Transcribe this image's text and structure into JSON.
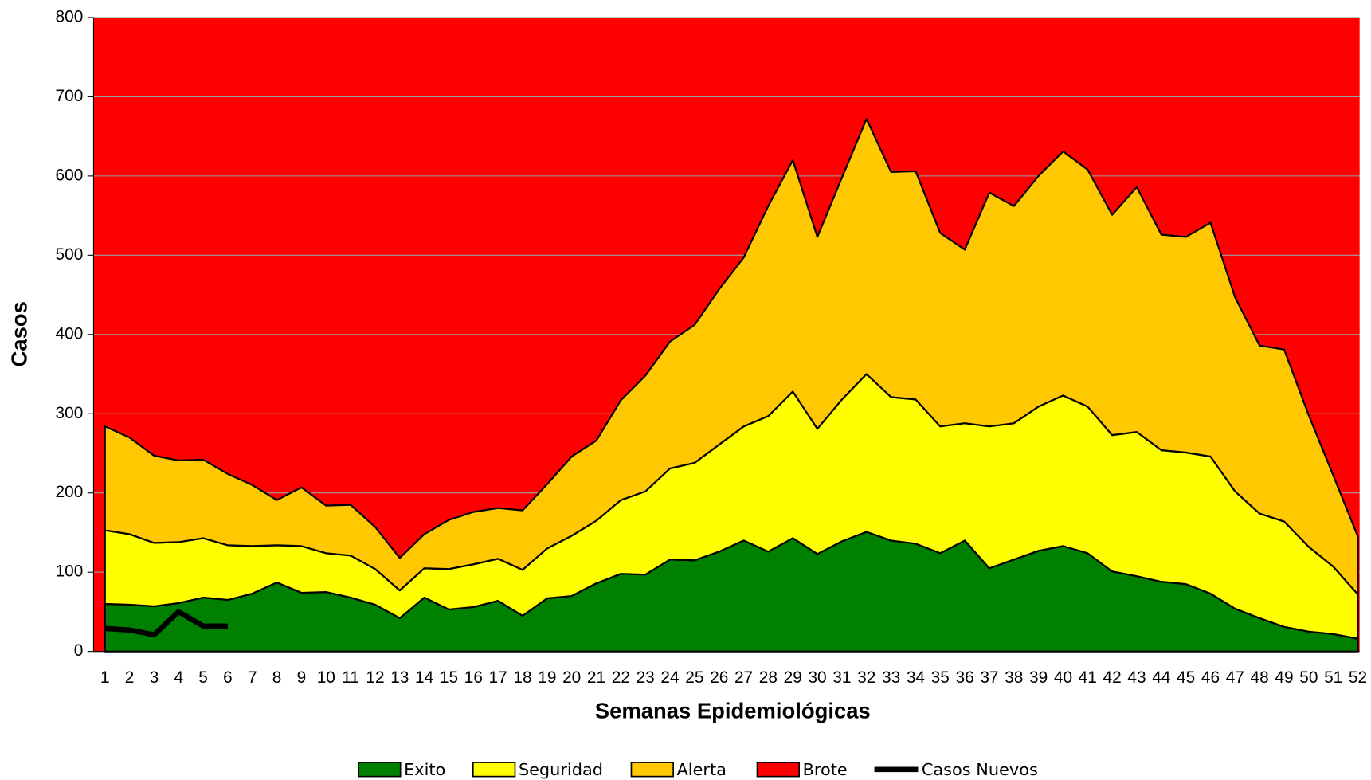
{
  "chart_data": {
    "type": "stacked-area",
    "xlabel": "Semanas Epidemiológicas",
    "ylabel": "Casos",
    "categories": [
      1,
      2,
      3,
      4,
      5,
      6,
      7,
      8,
      9,
      10,
      11,
      12,
      13,
      14,
      15,
      16,
      17,
      18,
      19,
      20,
      21,
      22,
      23,
      24,
      25,
      26,
      27,
      28,
      29,
      30,
      31,
      32,
      33,
      34,
      35,
      36,
      37,
      38,
      39,
      40,
      41,
      42,
      43,
      44,
      45,
      46,
      47,
      48,
      49,
      50,
      51,
      52
    ],
    "series": [
      {
        "name": "Exito",
        "color": "#008000",
        "values": [
          60,
          59,
          57,
          61,
          68,
          65,
          73,
          87,
          74,
          75,
          68,
          59,
          42,
          68,
          53,
          56,
          64,
          45,
          67,
          70,
          86,
          98,
          97,
          116,
          115,
          126,
          140,
          126,
          143,
          123,
          139,
          151,
          140,
          136,
          124,
          140,
          105,
          116,
          127,
          133,
          124,
          101,
          95,
          88,
          85,
          73,
          54,
          42,
          31,
          25,
          22,
          16
        ]
      },
      {
        "name": "Seguridad",
        "color": "#ffff00",
        "values": [
          93,
          89,
          80,
          77,
          75,
          69,
          60,
          47,
          59,
          49,
          53,
          45,
          35,
          37,
          51,
          54,
          53,
          58,
          63,
          76,
          79,
          93,
          105,
          115,
          123,
          135,
          144,
          171,
          185,
          158,
          179,
          199,
          181,
          182,
          160,
          148,
          179,
          172,
          182,
          190,
          185,
          172,
          182,
          166,
          166,
          173,
          148,
          132,
          133,
          107,
          85,
          56
        ]
      },
      {
        "name": "Alerta",
        "color": "#ffc800",
        "values": [
          131,
          122,
          110,
          103,
          99,
          90,
          77,
          57,
          74,
          60,
          64,
          53,
          41,
          43,
          62,
          66,
          64,
          75,
          81,
          100,
          101,
          126,
          146,
          160,
          174,
          196,
          213,
          265,
          292,
          242,
          280,
          322,
          284,
          288,
          244,
          219,
          295,
          274,
          291,
          308,
          299,
          278,
          309,
          272,
          272,
          295,
          245,
          212,
          217,
          166,
          115,
          73
        ]
      },
      {
        "name": "Brote",
        "color": "#ff0000"
      },
      {
        "name": "Casos Nuevos",
        "color": "#000000",
        "type": "line",
        "values": [
          29,
          27,
          21,
          50,
          32,
          32,
          null,
          null,
          null,
          null,
          null,
          null,
          null,
          null,
          null,
          null,
          null,
          null,
          null,
          null,
          null,
          null,
          null,
          null,
          null,
          null,
          null,
          null,
          null,
          null,
          null,
          null,
          null,
          null,
          null,
          null,
          null,
          null,
          null,
          null,
          null,
          null,
          null,
          null,
          null,
          null,
          null,
          null,
          null,
          null,
          null,
          null
        ]
      }
    ],
    "ylim": [
      0,
      800
    ],
    "yticks": [
      0,
      100,
      200,
      300,
      400,
      500,
      600,
      700,
      800
    ],
    "grid": true,
    "legend": "bottom"
  }
}
